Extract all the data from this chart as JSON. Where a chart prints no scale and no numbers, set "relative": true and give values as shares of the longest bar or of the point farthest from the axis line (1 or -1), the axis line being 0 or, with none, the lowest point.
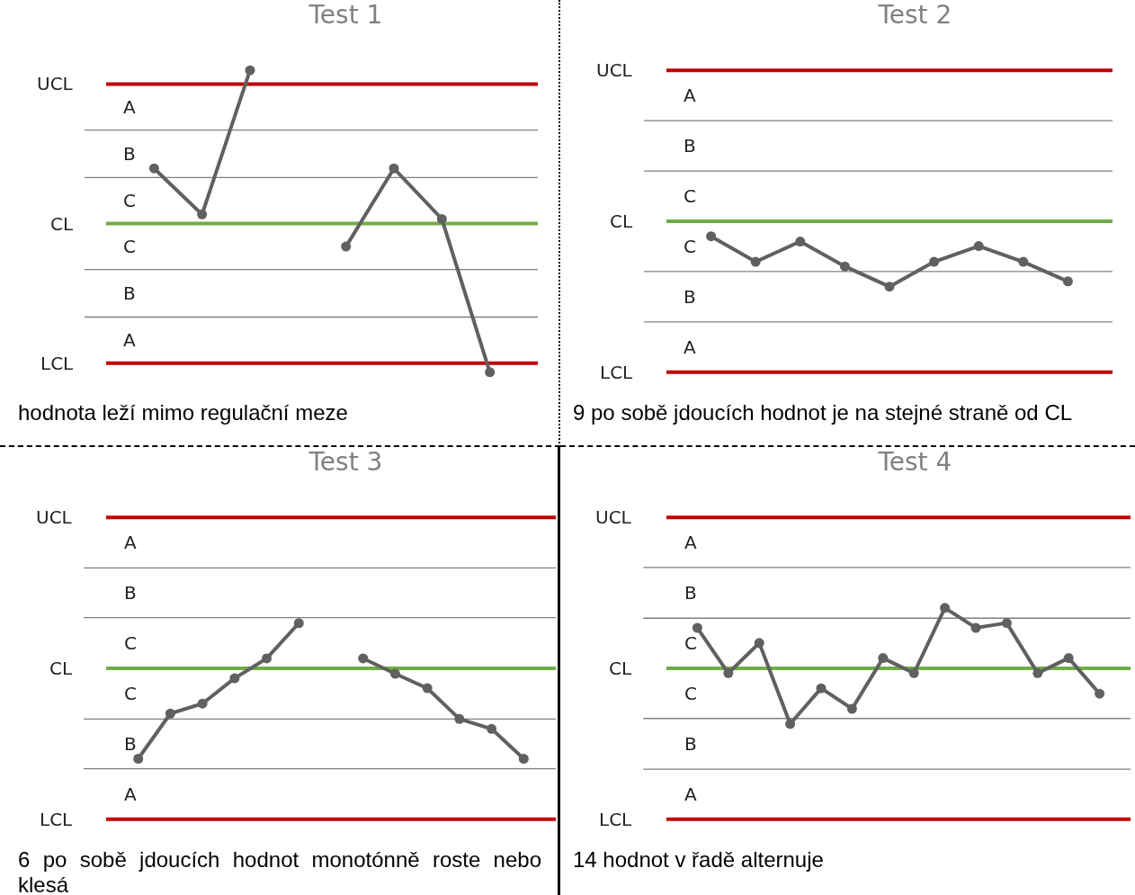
{
  "chart_data": [
    {
      "type": "line",
      "title": "Test 1",
      "annotations": [
        "hodnota leží mimo regulační meze",
        "A",
        "B",
        "C",
        "C",
        "B",
        "A"
      ],
      "categories": [
        null,
        null,
        null,
        null,
        null,
        null,
        null,
        null
      ],
      "series": [
        {
          "color": "#606060",
          "values": [
            0.36,
            0.06,
            1,
            null,
            null,
            null,
            null,
            null
          ]
        },
        {
          "color": "#606060",
          "values": [
            null,
            null,
            null,
            null,
            -0.15,
            0.36,
            0.03,
            -0.97
          ]
        }
      ],
      "relative": true,
      "ref_lines": [
        {
          "axis": "y",
          "value": 0.91,
          "color": "#c00000",
          "label": "UCL"
        },
        {
          "axis": "y",
          "value": 0.61,
          "color": "#808080"
        },
        {
          "axis": "y",
          "value": 0.3,
          "color": "#808080"
        },
        {
          "axis": "y",
          "value": 0,
          "color": "#70ad47",
          "label": "CL"
        },
        {
          "axis": "y",
          "value": -0.3,
          "color": "#808080"
        },
        {
          "axis": "y",
          "value": -0.61,
          "color": "#808080"
        },
        {
          "axis": "y",
          "value": -0.91,
          "color": "#c00000",
          "label": "LCL"
        }
      ],
      "marker": "circle"
    },
    {
      "type": "line",
      "title": "Test 2",
      "annotations": [
        "9 po sobě jdoucích hodnot je na stejné straně od CL",
        "A",
        "B",
        "C",
        "C",
        "B",
        "A"
      ],
      "categories": [
        null,
        null,
        null,
        null,
        null,
        null,
        null,
        null,
        null
      ],
      "series": [
        {
          "color": "#606060",
          "values": [
            -0.23,
            -0.62,
            -0.31,
            -0.69,
            -1,
            -0.62,
            -0.38,
            -0.62,
            -0.92
          ]
        }
      ],
      "relative": true,
      "ref_lines": [
        {
          "axis": "y",
          "value": 2.31,
          "color": "#c00000",
          "label": "UCL"
        },
        {
          "axis": "y",
          "value": 1.54,
          "color": "#808080"
        },
        {
          "axis": "y",
          "value": 0.77,
          "color": "#808080"
        },
        {
          "axis": "y",
          "value": 0,
          "color": "#70ad47",
          "label": "CL"
        },
        {
          "axis": "y",
          "value": -0.77,
          "color": "#808080"
        },
        {
          "axis": "y",
          "value": -1.54,
          "color": "#808080"
        },
        {
          "axis": "y",
          "value": -2.31,
          "color": "#c00000",
          "label": "LCL"
        }
      ],
      "marker": "circle"
    },
    {
      "type": "line",
      "title": "Test 3",
      "annotations": [
        "6 po sobě jdoucích hodnot monotónně roste nebo klesá",
        "A",
        "B",
        "C",
        "C",
        "B",
        "A"
      ],
      "categories": [
        null,
        null,
        null,
        null,
        null,
        null,
        null,
        null,
        null,
        null,
        null,
        null,
        null
      ],
      "series": [
        {
          "color": "#606060",
          "values": [
            -1,
            -0.5,
            -0.39,
            -0.11,
            0.11,
            0.5,
            null,
            null,
            null,
            null,
            null,
            null,
            null
          ]
        },
        {
          "color": "#606060",
          "values": [
            null,
            null,
            null,
            null,
            null,
            null,
            null,
            0.11,
            -0.06,
            -0.22,
            -0.56,
            -0.67,
            -1
          ]
        }
      ],
      "relative": true,
      "ref_lines": [
        {
          "axis": "y",
          "value": 1.67,
          "color": "#c00000",
          "label": "UCL"
        },
        {
          "axis": "y",
          "value": 1.11,
          "color": "#808080"
        },
        {
          "axis": "y",
          "value": 0.56,
          "color": "#808080"
        },
        {
          "axis": "y",
          "value": 0,
          "color": "#70ad47",
          "label": "CL"
        },
        {
          "axis": "y",
          "value": -0.56,
          "color": "#808080"
        },
        {
          "axis": "y",
          "value": -1.11,
          "color": "#808080"
        },
        {
          "axis": "y",
          "value": -1.67,
          "color": "#c00000",
          "label": "LCL"
        }
      ],
      "marker": "circle"
    },
    {
      "type": "line",
      "title": "Test 4",
      "annotations": [
        "14 hodnot v řadě alternuje",
        "A",
        "B",
        "C",
        "C",
        "B",
        "A"
      ],
      "categories": [
        null,
        null,
        null,
        null,
        null,
        null,
        null,
        null,
        null,
        null,
        null,
        null,
        null,
        null
      ],
      "series": [
        {
          "color": "#606060",
          "values": [
            0.67,
            -0.08,
            0.42,
            -0.92,
            -0.33,
            -0.67,
            0.17,
            -0.08,
            1,
            0.67,
            0.75,
            -0.08,
            0.17,
            -0.42
          ]
        }
      ],
      "relative": true,
      "ref_lines": [
        {
          "axis": "y",
          "value": 2.5,
          "color": "#c00000",
          "label": "UCL"
        },
        {
          "axis": "y",
          "value": 1.67,
          "color": "#808080"
        },
        {
          "axis": "y",
          "value": 0.83,
          "color": "#808080"
        },
        {
          "axis": "y",
          "value": 0,
          "color": "#70ad47",
          "label": "CL"
        },
        {
          "axis": "y",
          "value": -0.83,
          "color": "#808080"
        },
        {
          "axis": "y",
          "value": -1.67,
          "color": "#808080"
        },
        {
          "axis": "y",
          "value": -2.5,
          "color": "#c00000",
          "label": "LCL"
        }
      ],
      "marker": "circle"
    }
  ]
}
